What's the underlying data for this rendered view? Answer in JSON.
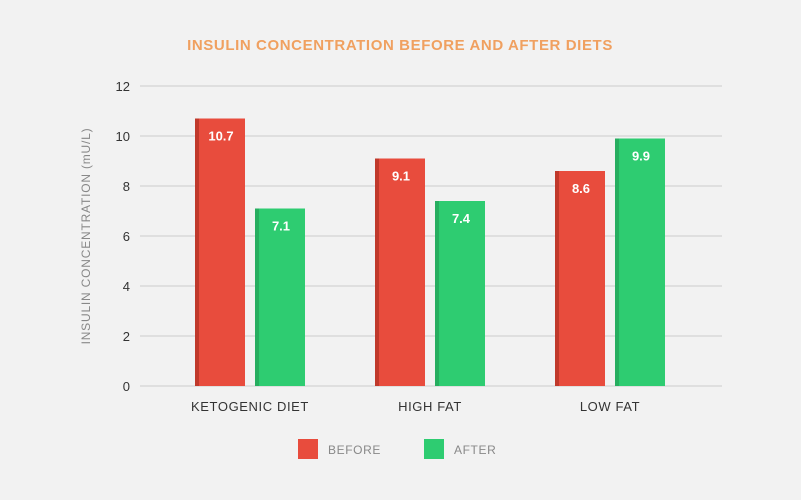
{
  "chart_data": {
    "type": "bar",
    "title": "INSULIN CONCENTRATION BEFORE AND AFTER DIETS",
    "title_color": "#f0a060",
    "xlabel": "",
    "ylabel": "INSULIN CONCENTRATION (mU/L)",
    "categories": [
      "KETOGENIC DIET",
      "HIGH FAT",
      "LOW FAT"
    ],
    "series": [
      {
        "name": "BEFORE",
        "color": "#e84c3d",
        "shade": "#c0392b",
        "values": [
          10.7,
          9.1,
          8.6
        ]
      },
      {
        "name": "AFTER",
        "color": "#2ecc71",
        "shade": "#27ae60",
        "values": [
          7.1,
          7.4,
          9.9
        ]
      }
    ],
    "ylim": [
      0,
      12
    ],
    "yticks": [
      0,
      2,
      4,
      6,
      8,
      10,
      12
    ],
    "grid": true,
    "legend": "bottom"
  }
}
